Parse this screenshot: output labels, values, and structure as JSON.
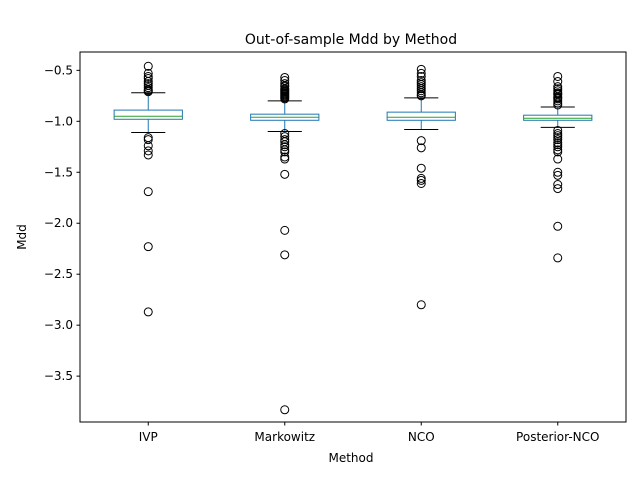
{
  "chart_data": {
    "type": "boxplot",
    "title": "Out-of-sample Mdd by Method",
    "xlabel": "Method",
    "ylabel": "Mdd",
    "ylim": [
      -3.95,
      -0.32
    ],
    "yticks": [
      -3.5,
      -3.0,
      -2.5,
      -2.0,
      -1.5,
      -1.0,
      -0.5
    ],
    "ytick_labels": [
      "−3.5",
      "−3.0",
      "−2.5",
      "−2.0",
      "−1.5",
      "−1.0",
      "−0.5"
    ],
    "grid": false,
    "colors": {
      "box": "#1f77b4",
      "median": "#2ca02c",
      "whisker": "#000000",
      "flier": "#000000"
    },
    "series": [
      {
        "category": "IVP",
        "q1": -0.98,
        "median": -0.95,
        "q3": -0.89,
        "whisker_low": -1.11,
        "whisker_high": -0.72,
        "fliers": [
          -0.46,
          -0.53,
          -0.56,
          -0.58,
          -0.61,
          -0.63,
          -0.65,
          -0.67,
          -0.69,
          -0.7,
          -0.71,
          -1.16,
          -1.18,
          -1.24,
          -1.29,
          -1.33,
          -1.69,
          -2.23,
          -2.87
        ]
      },
      {
        "category": "Markowitz",
        "q1": -0.99,
        "median": -0.96,
        "q3": -0.93,
        "whisker_low": -1.1,
        "whisker_high": -0.8,
        "fliers": [
          -0.57,
          -0.6,
          -0.63,
          -0.65,
          -0.66,
          -0.68,
          -0.69,
          -0.7,
          -0.71,
          -0.72,
          -0.73,
          -0.74,
          -0.75,
          -0.76,
          -0.77,
          -0.78,
          -1.12,
          -1.15,
          -1.18,
          -1.2,
          -1.23,
          -1.25,
          -1.28,
          -1.3,
          -1.35,
          -1.37,
          -1.52,
          -2.07,
          -2.31,
          -3.83
        ]
      },
      {
        "category": "NCO",
        "q1": -0.99,
        "median": -0.96,
        "q3": -0.91,
        "whisker_low": -1.08,
        "whisker_high": -0.77,
        "fliers": [
          -0.49,
          -0.53,
          -0.56,
          -0.6,
          -0.62,
          -0.64,
          -0.66,
          -0.68,
          -0.7,
          -0.72,
          -0.74,
          -0.75,
          -1.19,
          -1.26,
          -1.46,
          -1.56,
          -1.58,
          -1.61,
          -2.8
        ]
      },
      {
        "category": "Posterior-NCO",
        "q1": -0.99,
        "median": -0.97,
        "q3": -0.94,
        "whisker_low": -1.06,
        "whisker_high": -0.86,
        "fliers": [
          -0.56,
          -0.61,
          -0.66,
          -0.68,
          -0.7,
          -0.72,
          -0.73,
          -0.74,
          -0.76,
          -0.77,
          -0.78,
          -0.8,
          -0.82,
          -0.84,
          -1.09,
          -1.12,
          -1.14,
          -1.16,
          -1.18,
          -1.21,
          -1.23,
          -1.25,
          -1.28,
          -1.3,
          -1.37,
          -1.5,
          -1.53,
          -1.62,
          -1.66,
          -2.03,
          -2.34
        ]
      }
    ]
  }
}
